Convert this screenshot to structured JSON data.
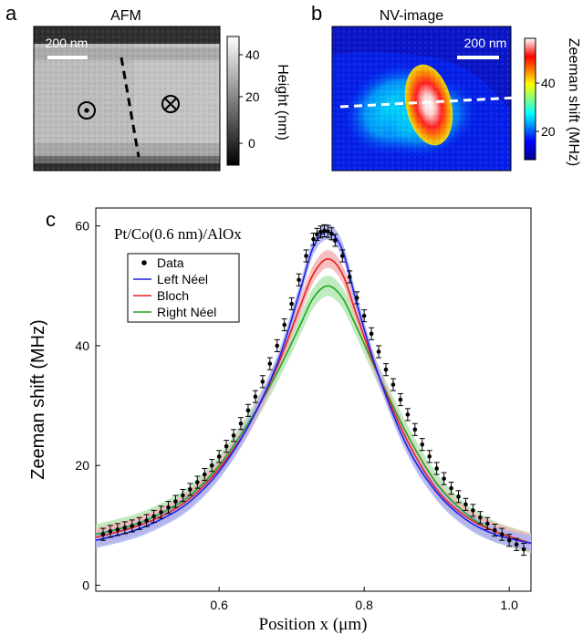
{
  "panels": {
    "a": {
      "label": "a",
      "title": "AFM",
      "scale_bar": "200 nm",
      "colorbar": {
        "label": "Height (nm)",
        "ticks": [
          "40",
          "20",
          "0"
        ]
      }
    },
    "b": {
      "label": "b",
      "title": "NV-image",
      "scale_bar": "200 nm",
      "colorbar": {
        "label": "Zeeman shift (MHz)",
        "ticks": [
          "40",
          "20"
        ]
      }
    },
    "c": {
      "label": "c"
    }
  },
  "colors": {
    "data": "#000000",
    "left_neel": "#1f1fe6",
    "bloch": "#e61f1f",
    "right_neel": "#1fa81f",
    "band_blue": "#aab4f2",
    "band_red": "#f4b5b5",
    "band_green": "#b5e6b5"
  },
  "chart_data": {
    "type": "line",
    "annotation": "Pt/Co(0.6 nm)/AlOx",
    "xlabel": "Position x (μm)",
    "ylabel": "Zeeman shift (MHz)",
    "xlim": [
      0.43,
      1.03
    ],
    "ylim": [
      -1,
      63
    ],
    "xticks": [
      0.6,
      0.8,
      1.0
    ],
    "xtick_labels": [
      "0.6",
      "0.8",
      "1.0"
    ],
    "yticks": [
      0,
      20,
      40,
      60
    ],
    "ytick_labels": [
      "0",
      "20",
      "40",
      "60"
    ],
    "legend": {
      "placement": "upper-left",
      "entries": [
        "Data",
        "Left Néel",
        "Bloch",
        "Right Néel"
      ]
    },
    "data_points": {
      "x": [
        0.44,
        0.45,
        0.46,
        0.47,
        0.48,
        0.49,
        0.5,
        0.51,
        0.52,
        0.53,
        0.54,
        0.55,
        0.56,
        0.57,
        0.58,
        0.59,
        0.6,
        0.61,
        0.62,
        0.63,
        0.64,
        0.65,
        0.66,
        0.67,
        0.68,
        0.69,
        0.7,
        0.71,
        0.72,
        0.73,
        0.735,
        0.74,
        0.745,
        0.75,
        0.755,
        0.76,
        0.77,
        0.78,
        0.79,
        0.8,
        0.81,
        0.82,
        0.83,
        0.84,
        0.85,
        0.86,
        0.87,
        0.88,
        0.89,
        0.9,
        0.91,
        0.92,
        0.93,
        0.94,
        0.95,
        0.96,
        0.97,
        0.98,
        0.99,
        1.0,
        1.01,
        1.02
      ],
      "y": [
        8.5,
        9.0,
        9.3,
        9.6,
        9.9,
        10.3,
        10.8,
        11.5,
        12.2,
        13.0,
        14.0,
        15.0,
        16.0,
        17.2,
        18.5,
        20.0,
        21.5,
        23.2,
        25.0,
        27.0,
        29.2,
        31.5,
        34.0,
        37.0,
        40.0,
        43.5,
        47.0,
        51.0,
        55.0,
        57.8,
        58.6,
        59.0,
        59.2,
        59.1,
        58.7,
        57.6,
        55.0,
        51.5,
        48.0,
        45.0,
        42.0,
        39.0,
        36.0,
        33.5,
        31.0,
        28.5,
        26.0,
        23.5,
        21.5,
        19.5,
        17.8,
        16.2,
        14.8,
        13.5,
        12.5,
        11.3,
        10.3,
        9.2,
        8.5,
        7.5,
        6.8,
        6.0
      ],
      "yerr": 1.0
    },
    "series": [
      {
        "name": "Left Néel",
        "x": [
          0.43,
          0.48,
          0.52,
          0.56,
          0.6,
          0.64,
          0.68,
          0.71,
          0.73,
          0.75,
          0.77,
          0.79,
          0.82,
          0.86,
          0.9,
          0.94,
          0.98,
          1.03
        ],
        "y": [
          7.5,
          9.0,
          11.0,
          14.0,
          19.0,
          26.5,
          37.0,
          48.5,
          56.5,
          59.0,
          56.0,
          47.0,
          35.0,
          23.0,
          15.5,
          11.0,
          8.5,
          7.0
        ],
        "band": 1.3
      },
      {
        "name": "Bloch",
        "x": [
          0.43,
          0.48,
          0.52,
          0.56,
          0.6,
          0.64,
          0.68,
          0.71,
          0.73,
          0.75,
          0.77,
          0.79,
          0.82,
          0.86,
          0.9,
          0.94,
          0.98,
          1.03
        ],
        "y": [
          8.0,
          9.6,
          11.5,
          14.5,
          19.5,
          26.5,
          36.5,
          46.0,
          52.0,
          54.5,
          52.0,
          45.0,
          35.0,
          24.0,
          16.0,
          11.5,
          9.0,
          7.0
        ],
        "band": 1.5
      },
      {
        "name": "Right Néel",
        "x": [
          0.43,
          0.48,
          0.52,
          0.56,
          0.6,
          0.64,
          0.68,
          0.71,
          0.73,
          0.75,
          0.77,
          0.79,
          0.82,
          0.86,
          0.9,
          0.94,
          0.98,
          1.03
        ],
        "y": [
          8.5,
          10.0,
          12.0,
          15.0,
          20.0,
          27.0,
          35.5,
          43.0,
          48.0,
          50.0,
          48.0,
          43.0,
          35.0,
          25.0,
          17.0,
          12.0,
          9.0,
          7.0
        ],
        "band": 1.7
      }
    ]
  }
}
